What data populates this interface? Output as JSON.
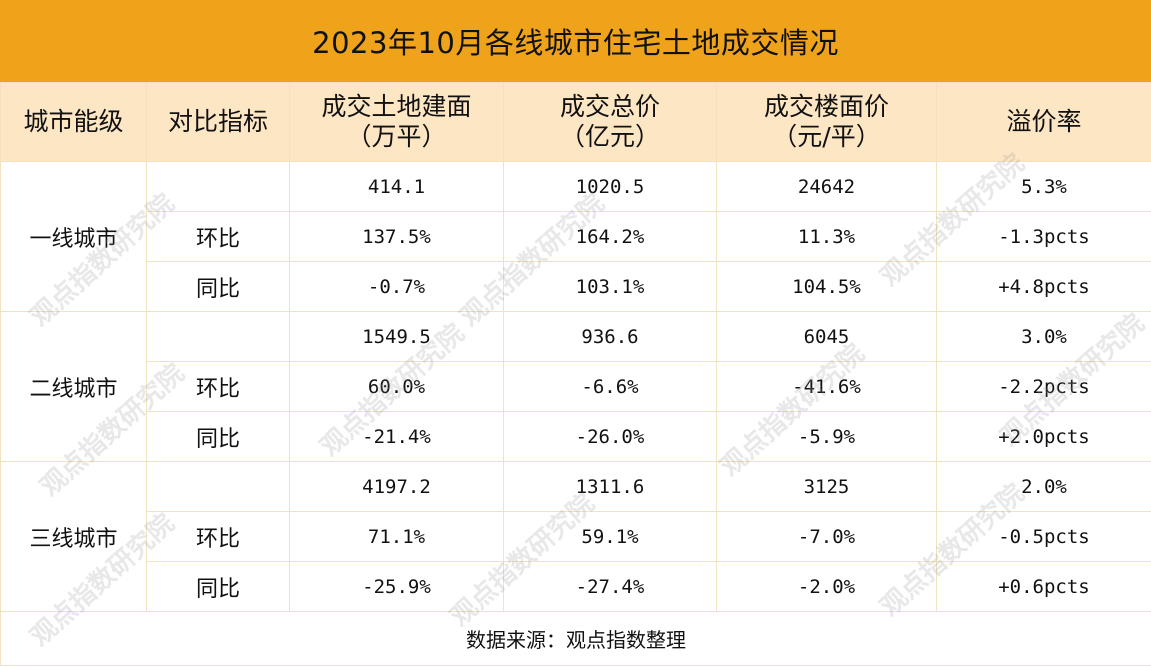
{
  "title": "2023年10月各线城市住宅土地成交情况",
  "headers": {
    "city": "城市能级",
    "metric": "对比指标",
    "area_line1": "成交土地建面",
    "area_line2": "（万平）",
    "total_line1": "成交总价",
    "total_line2": "（亿元）",
    "price_line1": "成交楼面价",
    "price_line2": "（元/平）",
    "premium": "溢价率"
  },
  "groups": [
    {
      "city": "一线城市",
      "rows": [
        {
          "metric": "",
          "area": "414.1",
          "total": "1020.5",
          "price": "24642",
          "premium": "5.3%"
        },
        {
          "metric": "环比",
          "area": "137.5%",
          "total": "164.2%",
          "price": "11.3%",
          "premium": "-1.3pcts"
        },
        {
          "metric": "同比",
          "area": "-0.7%",
          "total": "103.1%",
          "price": "104.5%",
          "premium": "+4.8pcts"
        }
      ]
    },
    {
      "city": "二线城市",
      "rows": [
        {
          "metric": "",
          "area": "1549.5",
          "total": "936.6",
          "price": "6045",
          "premium": "3.0%"
        },
        {
          "metric": "环比",
          "area": "60.0%",
          "total": "-6.6%",
          "price": "-41.6%",
          "premium": "-2.2pcts"
        },
        {
          "metric": "同比",
          "area": "-21.4%",
          "total": "-26.0%",
          "price": "-5.9%",
          "premium": "+2.0pcts"
        }
      ]
    },
    {
      "city": "三线城市",
      "rows": [
        {
          "metric": "",
          "area": "4197.2",
          "total": "1311.6",
          "price": "3125",
          "premium": "2.0%"
        },
        {
          "metric": "环比",
          "area": "71.1%",
          "total": "59.1%",
          "price": "-7.0%",
          "premium": "-0.5pcts"
        },
        {
          "metric": "同比",
          "area": "-25.9%",
          "total": "-27.4%",
          "price": "-2.0%",
          "premium": "+0.6pcts"
        }
      ]
    }
  ],
  "source": "数据来源：观点指数整理",
  "watermark": "观点指数研究院",
  "colors": {
    "title_bg": "#efa31a",
    "header_bg": "#fde6c4",
    "border": "#f3e2c0"
  }
}
